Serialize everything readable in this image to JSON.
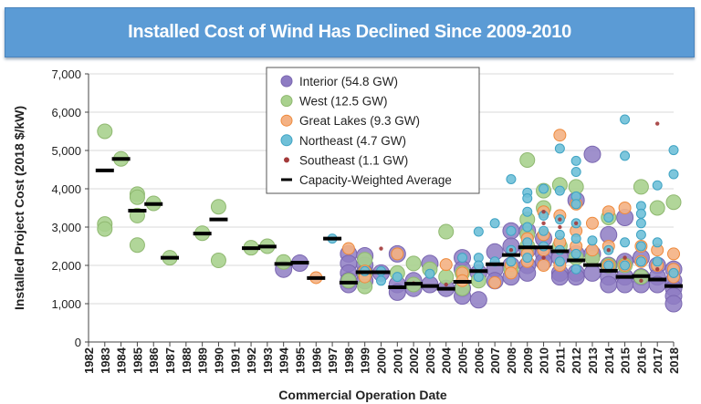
{
  "chart_data": {
    "type": "scatter",
    "title": "Installed Cost of Wind Has Declined Since 2009-2010",
    "xlabel": "Commercial Operation Date",
    "ylabel": "Installed Project Cost (2018 $/kW)",
    "ylim": [
      0,
      7000
    ],
    "yticks": [
      "0",
      "1,000",
      "2,000",
      "3,000",
      "4,000",
      "5,000",
      "6,000",
      "7,000"
    ],
    "categories": [
      "1982",
      "1983",
      "1984",
      "1985",
      "1986",
      "1987",
      "1988",
      "1989",
      "1990",
      "1991",
      "1992",
      "1993",
      "1994",
      "1995",
      "1996",
      "1997",
      "1998",
      "1999",
      "2000",
      "2001",
      "2002",
      "2003",
      "2004",
      "2005",
      "2006",
      "2007",
      "2008",
      "2009",
      "2010",
      "2011",
      "2012",
      "2013",
      "2014",
      "2015",
      "2016",
      "2017",
      "2018"
    ],
    "grid": true,
    "legend_placement": "top-center",
    "series": [
      {
        "name": "Interior (54.8 GW)",
        "color": "#8e7cc3",
        "points": [
          [
            1994,
            1900
          ],
          [
            1995,
            2060
          ],
          [
            1998,
            2300
          ],
          [
            1998,
            2050
          ],
          [
            1998,
            1800
          ],
          [
            1998,
            1600
          ],
          [
            1998,
            1500
          ],
          [
            1999,
            2250
          ],
          [
            1999,
            2000
          ],
          [
            1999,
            1800
          ],
          [
            1999,
            1600
          ],
          [
            2000,
            1800
          ],
          [
            2001,
            2300
          ],
          [
            2001,
            1500
          ],
          [
            2001,
            1300
          ],
          [
            2002,
            1600
          ],
          [
            2002,
            1400
          ],
          [
            2003,
            2050
          ],
          [
            2003,
            1500
          ],
          [
            2004,
            1400
          ],
          [
            2005,
            2200
          ],
          [
            2005,
            1900
          ],
          [
            2005,
            1400
          ],
          [
            2005,
            1200
          ],
          [
            2006,
            1100
          ],
          [
            2006,
            1800
          ],
          [
            2007,
            2350
          ],
          [
            2007,
            1900
          ],
          [
            2007,
            1600
          ],
          [
            2008,
            2900
          ],
          [
            2008,
            2500
          ],
          [
            2008,
            2000
          ],
          [
            2008,
            1700
          ],
          [
            2009,
            2900
          ],
          [
            2009,
            2400
          ],
          [
            2009,
            2000
          ],
          [
            2009,
            1800
          ],
          [
            2010,
            2700
          ],
          [
            2010,
            2300
          ],
          [
            2010,
            2100
          ],
          [
            2011,
            2200
          ],
          [
            2011,
            1800
          ],
          [
            2011,
            1700
          ],
          [
            2012,
            3700
          ],
          [
            2012,
            2300
          ],
          [
            2012,
            1800
          ],
          [
            2012,
            1700
          ],
          [
            2013,
            4900
          ],
          [
            2013,
            2300
          ],
          [
            2013,
            1800
          ],
          [
            2014,
            2800
          ],
          [
            2014,
            2000
          ],
          [
            2014,
            1700
          ],
          [
            2014,
            1500
          ],
          [
            2015,
            3250
          ],
          [
            2015,
            2100
          ],
          [
            2015,
            1700
          ],
          [
            2015,
            1500
          ],
          [
            2016,
            2200
          ],
          [
            2016,
            1700
          ],
          [
            2016,
            1500
          ],
          [
            2017,
            2000
          ],
          [
            2017,
            1700
          ],
          [
            2017,
            1500
          ],
          [
            2018,
            1900
          ],
          [
            2018,
            1600
          ],
          [
            2018,
            1400
          ],
          [
            2018,
            1200
          ],
          [
            2018,
            1000
          ]
        ]
      },
      {
        "name": "West (12.5 GW)",
        "color": "#a9d18e",
        "points": [
          [
            1983,
            5500
          ],
          [
            1983,
            3080
          ],
          [
            1983,
            2950
          ],
          [
            1984,
            4780
          ],
          [
            1985,
            3860
          ],
          [
            1985,
            3780
          ],
          [
            1985,
            3300
          ],
          [
            1985,
            2530
          ],
          [
            1986,
            3620
          ],
          [
            1987,
            2200
          ],
          [
            1989,
            2840
          ],
          [
            1990,
            3530
          ],
          [
            1990,
            2130
          ],
          [
            1992,
            2460
          ],
          [
            1993,
            2500
          ],
          [
            1994,
            2090
          ],
          [
            1998,
            1600
          ],
          [
            1999,
            2150
          ],
          [
            1999,
            1800
          ],
          [
            1999,
            1450
          ],
          [
            2001,
            1800
          ],
          [
            2002,
            2050
          ],
          [
            2002,
            1500
          ],
          [
            2003,
            1900
          ],
          [
            2004,
            2880
          ],
          [
            2004,
            1700
          ],
          [
            2005,
            1800
          ],
          [
            2005,
            1400
          ],
          [
            2006,
            1600
          ],
          [
            2008,
            1900
          ],
          [
            2009,
            4750
          ],
          [
            2009,
            3200
          ],
          [
            2009,
            2800
          ],
          [
            2009,
            2500
          ],
          [
            2010,
            3950
          ],
          [
            2010,
            3500
          ],
          [
            2011,
            4100
          ],
          [
            2011,
            2500
          ],
          [
            2012,
            4050
          ],
          [
            2012,
            2200
          ],
          [
            2013,
            2200
          ],
          [
            2014,
            3250
          ],
          [
            2014,
            2000
          ],
          [
            2015,
            2000
          ],
          [
            2016,
            4050
          ],
          [
            2016,
            1700
          ],
          [
            2017,
            3500
          ],
          [
            2018,
            3650
          ]
        ]
      },
      {
        "name": "Great Lakes (9.3 GW)",
        "color": "#f4b183",
        "points": [
          [
            1996,
            1680
          ],
          [
            1998,
            2440
          ],
          [
            1999,
            1850
          ],
          [
            1999,
            1700
          ],
          [
            2001,
            2300
          ],
          [
            2004,
            2020
          ],
          [
            2005,
            1800
          ],
          [
            2005,
            1600
          ],
          [
            2007,
            1550
          ],
          [
            2008,
            2000
          ],
          [
            2008,
            1800
          ],
          [
            2009,
            2700
          ],
          [
            2009,
            2300
          ],
          [
            2009,
            2100
          ],
          [
            2010,
            3400
          ],
          [
            2010,
            2800
          ],
          [
            2010,
            2400
          ],
          [
            2010,
            2000
          ],
          [
            2011,
            5400
          ],
          [
            2011,
            3300
          ],
          [
            2011,
            2600
          ],
          [
            2011,
            2000
          ],
          [
            2012,
            3600
          ],
          [
            2012,
            2900
          ],
          [
            2012,
            2500
          ],
          [
            2013,
            3100
          ],
          [
            2013,
            2400
          ],
          [
            2014,
            3400
          ],
          [
            2014,
            2500
          ],
          [
            2014,
            2000
          ],
          [
            2015,
            3500
          ],
          [
            2015,
            2000
          ],
          [
            2016,
            2500
          ],
          [
            2016,
            2100
          ],
          [
            2017,
            2400
          ],
          [
            2017,
            2000
          ],
          [
            2018,
            2300
          ],
          [
            2018,
            1900
          ],
          [
            2018,
            1700
          ]
        ]
      },
      {
        "name": "Northeast (4.7 GW)",
        "color": "#6fc0d8",
        "points": [
          [
            1997,
            2700
          ],
          [
            1999,
            1850
          ],
          [
            2000,
            1850
          ],
          [
            2000,
            1600
          ],
          [
            2001,
            1700
          ],
          [
            2003,
            1780
          ],
          [
            2005,
            2200
          ],
          [
            2006,
            2880
          ],
          [
            2006,
            2200
          ],
          [
            2006,
            2000
          ],
          [
            2006,
            1700
          ],
          [
            2007,
            3100
          ],
          [
            2007,
            2100
          ],
          [
            2008,
            4250
          ],
          [
            2008,
            2900
          ],
          [
            2008,
            2400
          ],
          [
            2008,
            2100
          ],
          [
            2009,
            3900
          ],
          [
            2009,
            3750
          ],
          [
            2009,
            3400
          ],
          [
            2009,
            3000
          ],
          [
            2009,
            2600
          ],
          [
            2009,
            2200
          ],
          [
            2010,
            4000
          ],
          [
            2010,
            3300
          ],
          [
            2010,
            2900
          ],
          [
            2010,
            2500
          ],
          [
            2011,
            5050
          ],
          [
            2011,
            3950
          ],
          [
            2011,
            3200
          ],
          [
            2011,
            2800
          ],
          [
            2011,
            2400
          ],
          [
            2011,
            2100
          ],
          [
            2012,
            4730
          ],
          [
            2012,
            4440
          ],
          [
            2012,
            3800
          ],
          [
            2012,
            3600
          ],
          [
            2012,
            3100
          ],
          [
            2012,
            2700
          ],
          [
            2012,
            2300
          ],
          [
            2012,
            1900
          ],
          [
            2013,
            2650
          ],
          [
            2014,
            3250
          ],
          [
            2014,
            2400
          ],
          [
            2014,
            2000
          ],
          [
            2015,
            5810
          ],
          [
            2015,
            4860
          ],
          [
            2015,
            2600
          ],
          [
            2015,
            2000
          ],
          [
            2016,
            3550
          ],
          [
            2016,
            3350
          ],
          [
            2016,
            3100
          ],
          [
            2016,
            2800
          ],
          [
            2016,
            2500
          ],
          [
            2016,
            2100
          ],
          [
            2017,
            4090
          ],
          [
            2017,
            2600
          ],
          [
            2017,
            2100
          ],
          [
            2018,
            5010
          ],
          [
            2018,
            4380
          ],
          [
            2018,
            1800
          ]
        ]
      },
      {
        "name": "Southeast (1.1 GW)",
        "color": "#a33a3a",
        "points": [
          [
            2000,
            2440
          ],
          [
            2002,
            1530
          ],
          [
            2004,
            1500
          ],
          [
            2008,
            2400
          ],
          [
            2010,
            3400
          ],
          [
            2010,
            3100
          ],
          [
            2010,
            2200
          ],
          [
            2011,
            3200
          ],
          [
            2011,
            3000
          ],
          [
            2012,
            3100
          ],
          [
            2014,
            2400
          ],
          [
            2015,
            2200
          ],
          [
            2016,
            1600
          ],
          [
            2017,
            5700
          ],
          [
            2017,
            1900
          ]
        ]
      }
    ],
    "average": {
      "name": "Capacity-Weighted Average",
      "color": "#000000",
      "points": [
        [
          1983,
          4480
        ],
        [
          1984,
          4780
        ],
        [
          1985,
          3430
        ],
        [
          1986,
          3600
        ],
        [
          1987,
          2200
        ],
        [
          1989,
          2830
        ],
        [
          1990,
          3200
        ],
        [
          1992,
          2450
        ],
        [
          1993,
          2490
        ],
        [
          1994,
          2040
        ],
        [
          1995,
          2070
        ],
        [
          1996,
          1670
        ],
        [
          1997,
          2700
        ],
        [
          1998,
          1550
        ],
        [
          1999,
          1820
        ],
        [
          2000,
          1820
        ],
        [
          2001,
          1430
        ],
        [
          2002,
          1520
        ],
        [
          2003,
          1460
        ],
        [
          2004,
          1390
        ],
        [
          2005,
          1570
        ],
        [
          2006,
          1850
        ],
        [
          2007,
          2030
        ],
        [
          2008,
          2270
        ],
        [
          2009,
          2470
        ],
        [
          2010,
          2470
        ],
        [
          2011,
          2370
        ],
        [
          2012,
          2130
        ],
        [
          2013,
          2010
        ],
        [
          2014,
          1860
        ],
        [
          2015,
          1700
        ],
        [
          2016,
          1720
        ],
        [
          2017,
          1630
        ],
        [
          2018,
          1460
        ]
      ]
    }
  }
}
